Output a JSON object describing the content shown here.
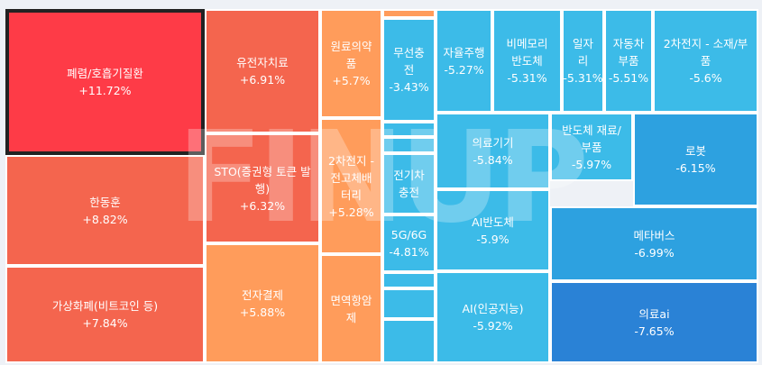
{
  "watermark": "FINUP",
  "colors": {
    "strong_up": "#fe3b47",
    "up": "#f4654e",
    "mild_up": "#ff9c5b",
    "down_light": "#3cbbe8",
    "down_mid": "#2da1e0",
    "down_strong": "#2a82d6"
  },
  "chart_data": {
    "type": "treemap",
    "selected": "폐렴/호흡기질환",
    "items": [
      {
        "name": "폐렴/호흡기질환",
        "change": "+11.72%",
        "value": 11.72
      },
      {
        "name": "한동훈",
        "change": "+8.82%",
        "value": 8.82
      },
      {
        "name": "가상화폐(비트코인 등)",
        "change": "+7.84%",
        "value": 7.84
      },
      {
        "name": "유전자치료",
        "change": "+6.91%",
        "value": 6.91
      },
      {
        "name": "STO(증권형 토큰 발행)",
        "change": "+6.32%",
        "value": 6.32
      },
      {
        "name": "전자결제",
        "change": "+5.88%",
        "value": 5.88
      },
      {
        "name": "원료의약품",
        "change": "+5.7%",
        "value": 5.7
      },
      {
        "name": "2차전지 - 전고체배터리",
        "change": "+5.28%",
        "value": 5.28
      },
      {
        "name": "면역항암제",
        "change": "",
        "value": null
      },
      {
        "name": "무선충전",
        "change": "-3.43%",
        "value": -3.43
      },
      {
        "name": "전기차 충전",
        "change": "",
        "value": null
      },
      {
        "name": "5G/6G",
        "change": "-4.81%",
        "value": -4.81
      },
      {
        "name": "자율주행",
        "change": "-5.27%",
        "value": -5.27
      },
      {
        "name": "비메모리 반도체",
        "change": "-5.31%",
        "value": -5.31
      },
      {
        "name": "일자리",
        "change": "-5.31%",
        "value": -5.31
      },
      {
        "name": "자동차 부품",
        "change": "-5.51%",
        "value": -5.51
      },
      {
        "name": "2차전지 - 소재/부품",
        "change": "-5.6%",
        "value": -5.6
      },
      {
        "name": "의료기기",
        "change": "-5.84%",
        "value": -5.84
      },
      {
        "name": "반도체 재료/부품",
        "change": "-5.97%",
        "value": -5.97
      },
      {
        "name": "로봇",
        "change": "-6.15%",
        "value": -6.15
      },
      {
        "name": "AI반도체",
        "change": "-5.9%",
        "value": -5.9
      },
      {
        "name": "메타버스",
        "change": "-6.99%",
        "value": -6.99
      },
      {
        "name": "AI(인공지능)",
        "change": "-5.92%",
        "value": -5.92
      },
      {
        "name": "의료ai",
        "change": "-7.65%",
        "value": -7.65
      }
    ]
  }
}
